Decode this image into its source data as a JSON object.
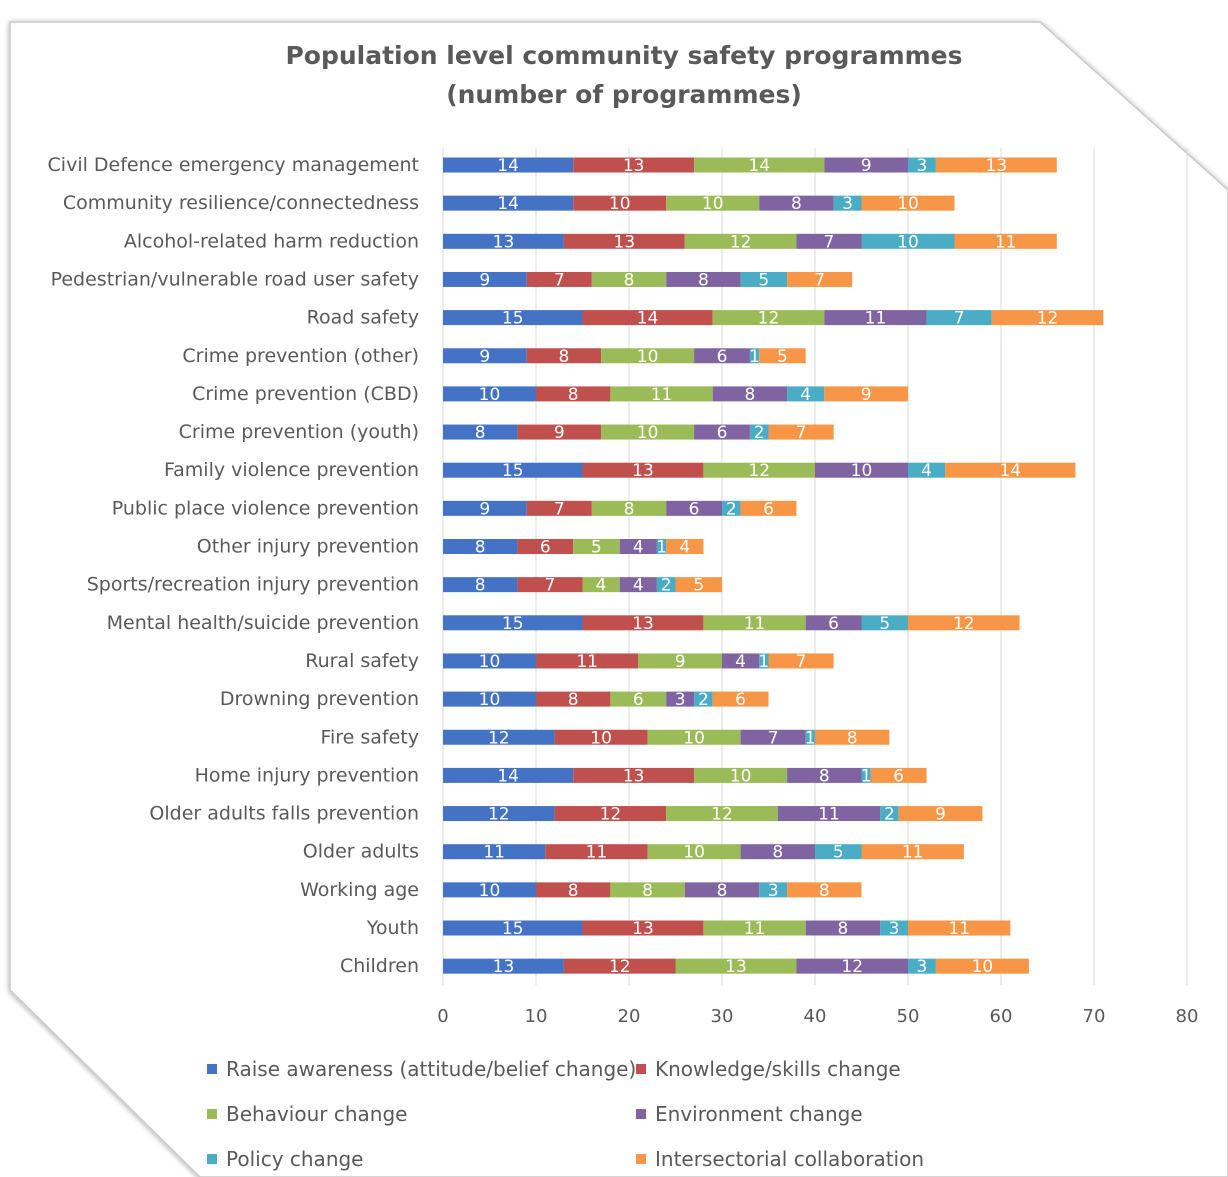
{
  "chart_data": {
    "type": "bar",
    "orientation": "horizontal",
    "stacked": true,
    "title": [
      "Population  level community  safety programmes",
      "(number of programmes)"
    ],
    "categories": [
      "Civil Defence emergency management",
      "Community resilience/connectedness",
      "Alcohol-related harm reduction",
      "Pedestrian/vulnerable road user safety",
      "Road safety",
      "Crime prevention (other)",
      "Crime prevention (CBD)",
      "Crime prevention (youth)",
      "Family violence prevention",
      "Public place violence prevention",
      "Other injury prevention",
      "Sports/recreation injury prevention",
      "Mental health/suicide prevention",
      "Rural safety",
      "Drowning prevention",
      "Fire safety",
      "Home injury prevention",
      "Older adults falls prevention",
      "Older adults",
      "Working age",
      "Youth",
      "Children"
    ],
    "series": [
      {
        "name": "Raise awareness (attitude/belief change)",
        "color": "#4472c4",
        "values": [
          14,
          14,
          13,
          9,
          15,
          9,
          10,
          8,
          15,
          9,
          8,
          8,
          15,
          10,
          10,
          12,
          14,
          12,
          11,
          10,
          15,
          13
        ]
      },
      {
        "name": "Knowledge/skills change",
        "color": "#c0504d",
        "values": [
          13,
          10,
          13,
          7,
          14,
          8,
          8,
          9,
          13,
          7,
          6,
          7,
          13,
          11,
          8,
          10,
          13,
          12,
          11,
          8,
          13,
          12
        ]
      },
      {
        "name": "Behaviour change",
        "color": "#9bbb59",
        "values": [
          14,
          10,
          12,
          8,
          12,
          10,
          11,
          10,
          12,
          8,
          5,
          4,
          11,
          9,
          6,
          10,
          10,
          12,
          10,
          8,
          11,
          13
        ]
      },
      {
        "name": "Environment change",
        "color": "#8064a2",
        "values": [
          9,
          8,
          7,
          8,
          11,
          6,
          8,
          6,
          10,
          6,
          4,
          4,
          6,
          4,
          3,
          7,
          8,
          11,
          8,
          8,
          8,
          12
        ]
      },
      {
        "name": "Policy change",
        "color": "#4bacc6",
        "values": [
          3,
          3,
          10,
          5,
          7,
          1,
          4,
          2,
          4,
          2,
          1,
          2,
          5,
          1,
          2,
          1,
          1,
          2,
          5,
          3,
          3,
          3
        ]
      },
      {
        "name": "Intersectorial collaboration",
        "color": "#f79646",
        "values": [
          13,
          10,
          11,
          7,
          12,
          5,
          9,
          7,
          14,
          6,
          4,
          5,
          12,
          7,
          6,
          8,
          6,
          9,
          11,
          8,
          11,
          10
        ]
      }
    ],
    "xlim": [
      0,
      80
    ],
    "x_ticks": [
      "0",
      "10",
      "20",
      "30",
      "40",
      "50",
      "60",
      "70",
      "80"
    ],
    "grid": true,
    "legend_position": "bottom"
  }
}
